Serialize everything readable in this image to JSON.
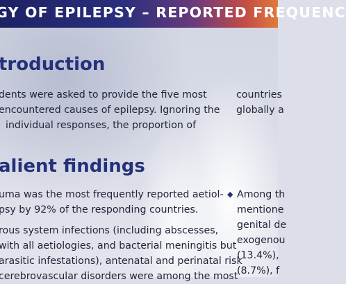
{
  "header": {
    "title": "GY OF EPILEPSY – REPORTED FREQUENC"
  },
  "introduction": {
    "heading": "troduction",
    "left_lines": [
      "dents were asked to provide the five most",
      "encountered causes of epilepsy. Ignoring the",
      "individual responses, the proportion of"
    ],
    "right_lines": [
      "countries",
      "globally a"
    ]
  },
  "findings": {
    "heading": "alient findings",
    "left_lines": [
      "uma was the most frequently reported aetiol-",
      "psy by 92% of the responding countries.",
      "rous system infections (including abscesses,",
      "with all aetiologies, and bacterial meningitis but",
      "arasitic infestations), antenatal and perinatal risk",
      "cerebrovascular disorders were among the most"
    ],
    "bullet_glyph": "◆",
    "right_lines": [
      "Among th",
      "mentione",
      "genital de",
      "exogenou",
      "(13.4%),",
      "(8.7%), f"
    ]
  }
}
